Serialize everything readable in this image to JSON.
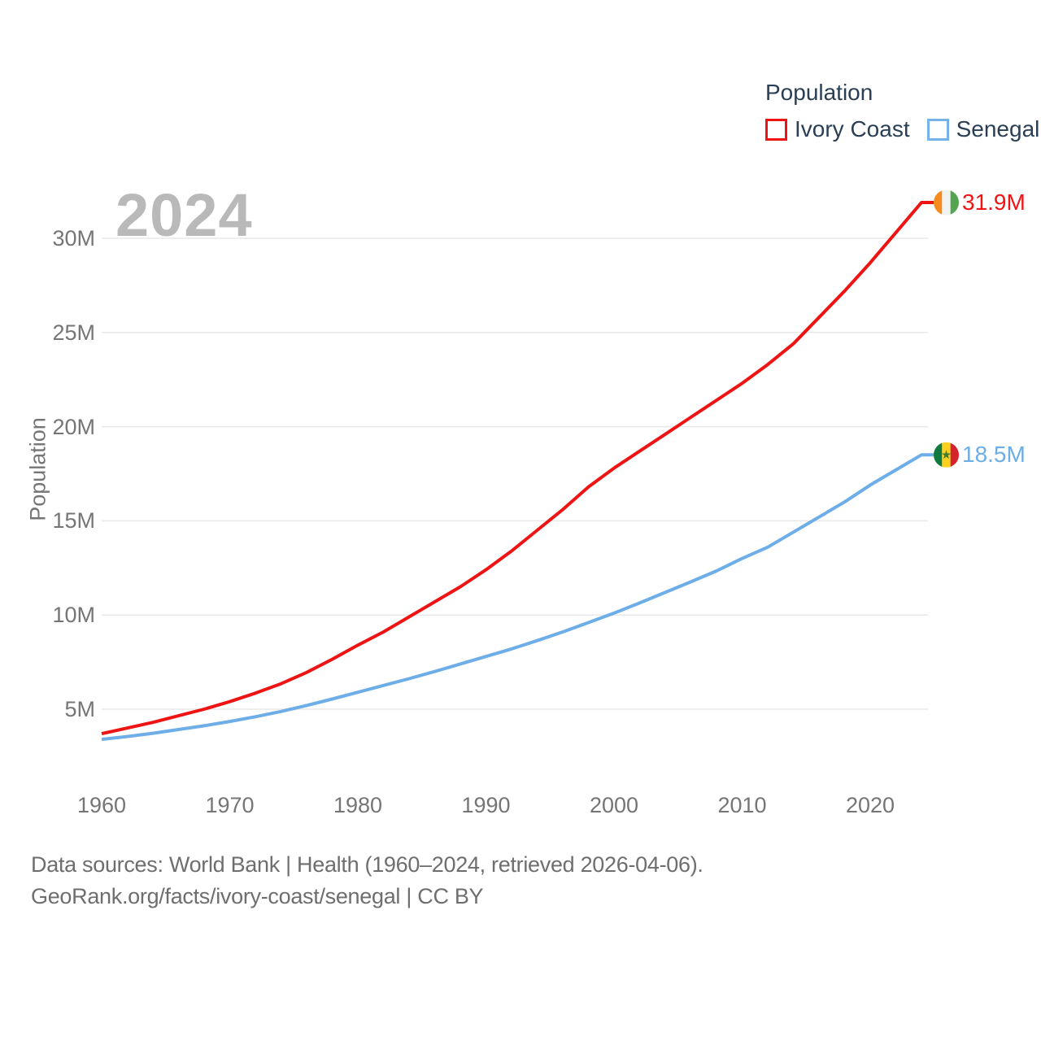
{
  "legend": {
    "title": "Population",
    "items": [
      {
        "label": "Ivory Coast",
        "color": "#ef1414"
      },
      {
        "label": "Senegal",
        "color": "#74b2e8"
      }
    ]
  },
  "watermark": "2024",
  "footer": {
    "line1": "Data sources: World Bank | Health (1960–2024, retrieved 2026-04-06).",
    "line2": "GeoRank.org/facts/ivory-coast/senegal | CC BY"
  },
  "chart_data": {
    "type": "line",
    "title": "Population",
    "xlabel": "",
    "ylabel": "Population",
    "grid": "horizontal",
    "legend_position": "top-right",
    "xlim": [
      1960,
      2024
    ],
    "ylim": [
      3,
      32.5
    ],
    "xticks": [
      1960,
      1970,
      1980,
      1990,
      2000,
      2010,
      2020
    ],
    "yticks": [
      {
        "value": 30,
        "label": "30M"
      },
      {
        "value": 25,
        "label": "25M"
      },
      {
        "value": 20,
        "label": "20M"
      },
      {
        "value": 15,
        "label": "15M"
      },
      {
        "value": 10,
        "label": "10M"
      },
      {
        "value": 5,
        "label": "5M"
      }
    ],
    "x": [
      1960,
      1962,
      1964,
      1966,
      1968,
      1970,
      1972,
      1974,
      1976,
      1978,
      1980,
      1982,
      1984,
      1986,
      1988,
      1990,
      1992,
      1994,
      1996,
      1998,
      2000,
      2002,
      2004,
      2006,
      2008,
      2010,
      2012,
      2014,
      2016,
      2018,
      2020,
      2022,
      2024
    ],
    "series": [
      {
        "name": "Ivory Coast",
        "color": "#ef1414",
        "end_label": "31.9M",
        "end_value": 31.9,
        "flag": "ivory-coast",
        "values": [
          3.7,
          4.0,
          4.3,
          4.65,
          5.0,
          5.4,
          5.85,
          6.35,
          6.95,
          7.65,
          8.4,
          9.1,
          9.9,
          10.7,
          11.5,
          12.4,
          13.4,
          14.5,
          15.6,
          16.8,
          17.8,
          18.7,
          19.6,
          20.5,
          21.4,
          22.3,
          23.3,
          24.4,
          25.8,
          27.2,
          28.7,
          30.3,
          31.9
        ]
      },
      {
        "name": "Senegal",
        "color": "#6dade8",
        "end_label": "18.5M",
        "end_value": 18.5,
        "flag": "senegal",
        "values": [
          3.4,
          3.55,
          3.72,
          3.92,
          4.12,
          4.35,
          4.6,
          4.88,
          5.2,
          5.54,
          5.9,
          6.26,
          6.62,
          7.0,
          7.4,
          7.8,
          8.2,
          8.64,
          9.1,
          9.6,
          10.1,
          10.64,
          11.2,
          11.76,
          12.34,
          13.0,
          13.6,
          14.4,
          15.2,
          16.0,
          16.9,
          17.7,
          18.5
        ]
      }
    ]
  }
}
